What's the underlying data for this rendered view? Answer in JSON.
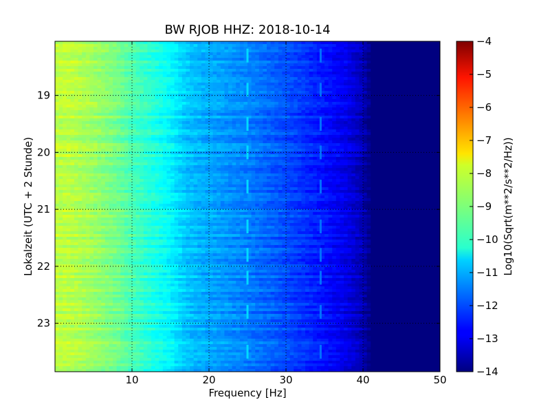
{
  "chart_data": {
    "type": "heatmap",
    "title": "BW RJOB HHZ: 2018-10-14",
    "xlabel": "Frequency [Hz]",
    "ylabel": "Lokalzeit (UTC + 2 Stunde)",
    "xlim": [
      0,
      50
    ],
    "ylim": [
      18.05,
      23.85
    ],
    "x_ticks": [
      10,
      20,
      30,
      40,
      50
    ],
    "x_tick_labels": [
      "10",
      "20",
      "30",
      "40",
      "50"
    ],
    "y_ticks": [
      19,
      20,
      21,
      22,
      23
    ],
    "y_tick_labels": [
      "19",
      "20",
      "21",
      "22",
      "23"
    ],
    "y_inverted": true,
    "grid": true,
    "colormap": "jet",
    "colorbar": {
      "label": "Log10(Sqrt(m**2/s**2/Hz))",
      "range": [
        -14,
        -4
      ],
      "ticks": [
        -4,
        -5,
        -6,
        -7,
        -8,
        -9,
        -10,
        -11,
        -12,
        -13,
        -14
      ],
      "tick_labels": [
        "−4",
        "−5",
        "−6",
        "−7",
        "−8",
        "−9",
        "−10",
        "−11",
        "−12",
        "−13",
        "−14"
      ]
    },
    "spectrum_profile": {
      "frequency_hz": [
        0,
        2,
        5,
        8,
        10,
        12,
        15,
        17,
        20,
        25,
        30,
        35,
        38,
        40,
        41,
        42,
        50
      ],
      "log10_amplitude": [
        -8.4,
        -8.4,
        -8.7,
        -9.1,
        -9.5,
        -9.8,
        -10.3,
        -10.8,
        -11.1,
        -11.5,
        -12.0,
        -12.6,
        -13.0,
        -13.5,
        -14.0,
        -14.0,
        -14.0
      ]
    },
    "spectral_lines_hz": [
      25,
      34.5
    ],
    "line_hours": [
      18.3,
      18.9,
      19.5,
      20.0,
      20.6,
      21.3,
      21.8,
      22.2,
      22.8,
      23.5
    ]
  }
}
